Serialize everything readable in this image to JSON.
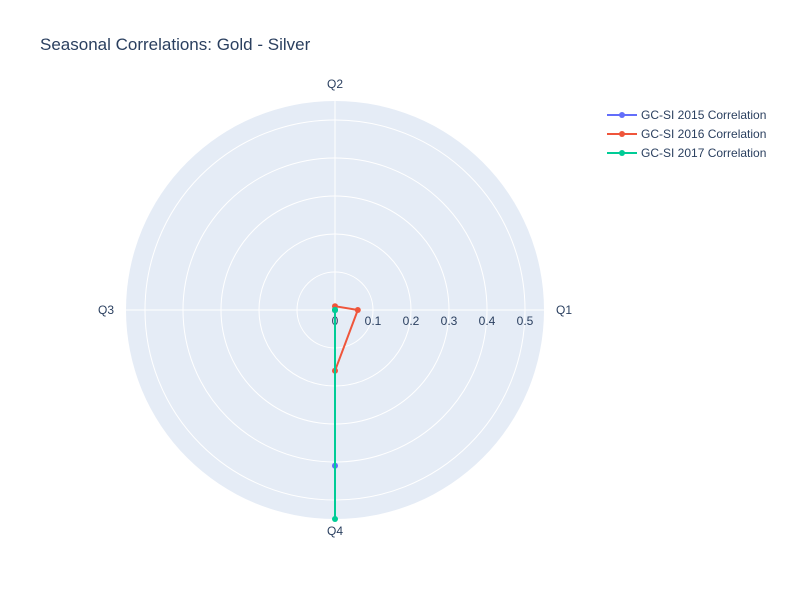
{
  "chart_data": {
    "type": "polar-line",
    "title": "Seasonal Correlations: Gold - Silver",
    "angular_categories": [
      "Q1",
      "Q2",
      "Q3",
      "Q4"
    ],
    "angular_direction": "counterclockwise",
    "angular_rotation_deg": 0,
    "radial_ticks": [
      "0",
      "0.1",
      "0.2",
      "0.3",
      "0.4",
      "0.5"
    ],
    "radial_range": [
      0,
      0.55
    ],
    "grid": true,
    "legend_position": "top-right",
    "series": [
      {
        "name": "GC-SI 2015 Correlation",
        "color": "#636efa",
        "r": [
          0.0,
          0.0,
          0.0,
          0.41
        ]
      },
      {
        "name": "GC-SI 2016 Correlation",
        "color": "#ef553b",
        "r": [
          0.06,
          0.01,
          0.0,
          0.16
        ]
      },
      {
        "name": "GC-SI 2017 Correlation",
        "color": "#00cc96",
        "r": [
          0.0,
          0.0,
          0.0,
          0.55
        ]
      }
    ],
    "colors": {
      "plot_bg": "#e5ecf6",
      "grid": "#ffffff",
      "text": "#2a3f5f"
    }
  }
}
